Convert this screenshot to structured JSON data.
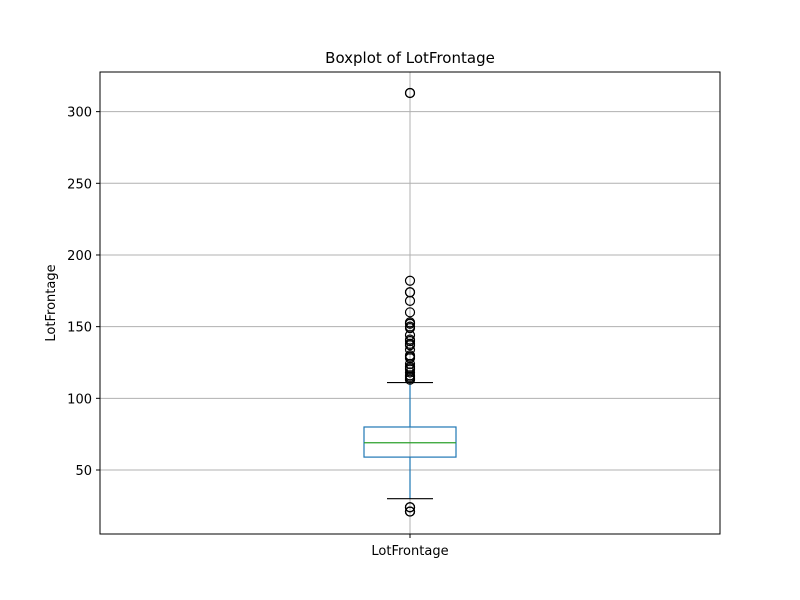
{
  "chart_data": {
    "type": "box",
    "title": "Boxplot of LotFrontage",
    "xlabel": "",
    "ylabel": "LotFrontage",
    "categories": [
      "LotFrontage"
    ],
    "ylim": [
      5.35,
      327.65
    ],
    "yticks": [
      50,
      100,
      150,
      200,
      250,
      300
    ],
    "grid": true,
    "series": [
      {
        "whisker_low": 30,
        "q1": 59,
        "median": 69,
        "q3": 80,
        "whisker_high": 111,
        "outliers": [
          21,
          21,
          21,
          24,
          24,
          113,
          114,
          115,
          116,
          118,
          120,
          121,
          122,
          124,
          128,
          129,
          130,
          134,
          137,
          138,
          140,
          141,
          144,
          149,
          150,
          152,
          153,
          160,
          168,
          174,
          174,
          182,
          313,
          313
        ]
      }
    ],
    "colors": {
      "box": "#1f77b4",
      "median": "#2ca02c",
      "whisker_cap": "#000000",
      "grid": "#b0b0b0",
      "outlier_edge": "#000000"
    }
  }
}
